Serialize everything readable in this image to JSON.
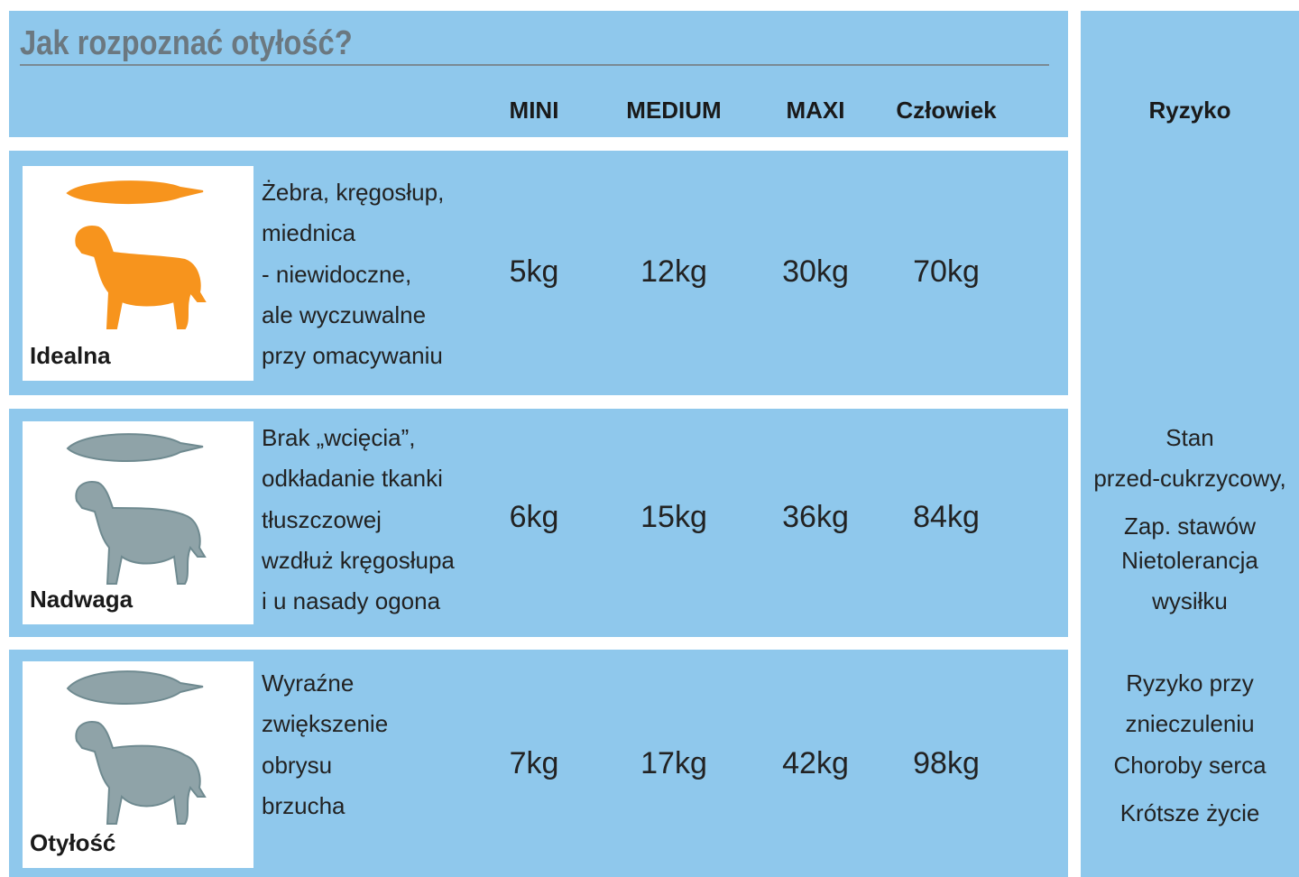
{
  "title": "Jak rozpoznać otyłość?",
  "columns": [
    "MINI",
    "MEDIUM",
    "MAXI",
    "Człowiek"
  ],
  "risk_header": "Ryzyko",
  "rows": [
    {
      "label": "Idealna",
      "description": [
        "Żebra, kręgosłup,",
        "miednica",
        "- niewidoczne,",
        "ale wyczuwalne",
        "przy omacywaniu"
      ],
      "weights": [
        "5kg",
        "12kg",
        "30kg",
        "70kg"
      ]
    },
    {
      "label": "Nadwaga",
      "description": [
        "Brak „wcięcia”,",
        "odkładanie tkanki",
        "tłuszczowej",
        "wzdłuż kręgosłupa",
        "i u nasady ogona"
      ],
      "weights": [
        "6kg",
        "15kg",
        "36kg",
        "84kg"
      ]
    },
    {
      "label": "Otyłość",
      "description": [
        "Wyraźne",
        "zwiększenie",
        "obrysu",
        "brzucha"
      ],
      "weights": [
        "7kg",
        "17kg",
        "42kg",
        "98kg"
      ]
    }
  ],
  "risks": [
    "Stan",
    "przed-cukrzycowy,",
    "Zap. stawów",
    "Nietolerancja",
    "wysiłku",
    "Ryzyko przy",
    "znieczuleniu",
    "Choroby serca",
    "Krótsze życie"
  ]
}
